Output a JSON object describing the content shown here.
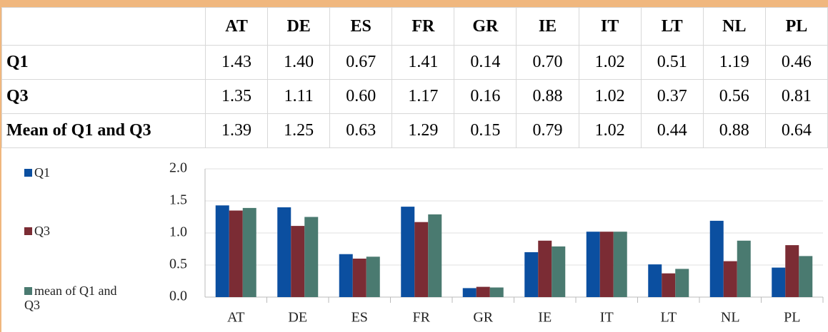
{
  "table": {
    "columns": [
      "AT",
      "DE",
      "ES",
      "FR",
      "GR",
      "IE",
      "IT",
      "LT",
      "NL",
      "PL"
    ],
    "rows": [
      {
        "label": "Q1",
        "cells": [
          "1.43",
          "1.40",
          "0.67",
          "1.41",
          "0.14",
          "0.70",
          "1.02",
          "0.51",
          "1.19",
          "0.46"
        ]
      },
      {
        "label": "Q3",
        "cells": [
          "1.35",
          "1.11",
          "0.60",
          "1.17",
          "0.16",
          "0.88",
          "1.02",
          "0.37",
          "0.56",
          "0.81"
        ]
      },
      {
        "label": "Mean of Q1 and Q3",
        "cells": [
          "1.39",
          "1.25",
          "0.63",
          "1.29",
          "0.15",
          "0.79",
          "1.02",
          "0.44",
          "0.88",
          "0.64"
        ]
      }
    ]
  },
  "chart_data": {
    "type": "bar",
    "categories": [
      "AT",
      "DE",
      "ES",
      "FR",
      "GR",
      "IE",
      "IT",
      "LT",
      "NL",
      "PL"
    ],
    "series": [
      {
        "name": "Q1",
        "color": "#0b4fa0",
        "values": [
          1.43,
          1.4,
          0.67,
          1.41,
          0.14,
          0.7,
          1.02,
          0.51,
          1.19,
          0.46
        ]
      },
      {
        "name": "Q3",
        "color": "#7b2c34",
        "values": [
          1.35,
          1.11,
          0.6,
          1.17,
          0.16,
          0.88,
          1.02,
          0.37,
          0.56,
          0.81
        ]
      },
      {
        "name": "mean of Q1 and Q3",
        "color": "#4a7a70",
        "values": [
          1.39,
          1.25,
          0.63,
          1.29,
          0.15,
          0.79,
          1.02,
          0.44,
          0.88,
          0.64
        ]
      }
    ],
    "ylim": [
      0,
      2
    ],
    "yticks": [
      {
        "value": 0,
        "label": "0.0"
      },
      {
        "value": 0.5,
        "label": "0.5"
      },
      {
        "value": 1,
        "label": "1.0"
      },
      {
        "value": 1.5,
        "label": "1.5"
      },
      {
        "value": 2,
        "label": "2.0"
      }
    ],
    "grid": true,
    "legend": "left"
  }
}
